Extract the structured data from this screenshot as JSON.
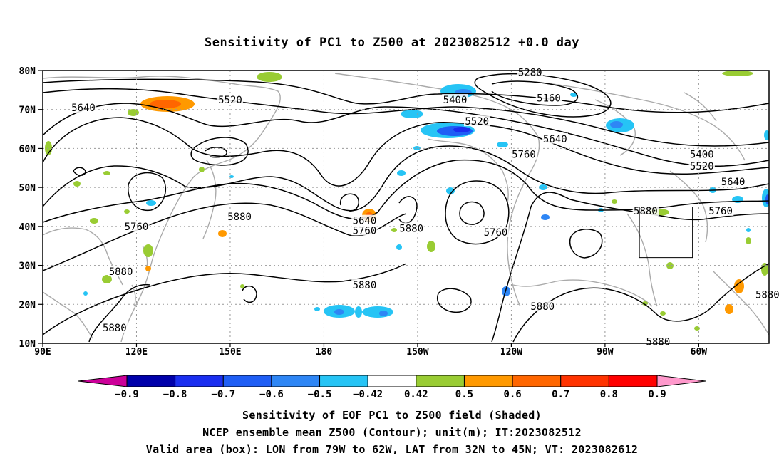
{
  "title": "Sensitivity of PC1 to Z500 at 2023082512 +0.0 day",
  "axes": {
    "lat_labels": [
      "80N",
      "70N",
      "60N",
      "50N",
      "40N",
      "30N",
      "20N",
      "10N"
    ],
    "lon_labels": [
      "90E",
      "120E",
      "150E",
      "180",
      "150W",
      "120W",
      "90W",
      "60W"
    ],
    "lat_values": [
      80,
      70,
      60,
      50,
      40,
      30,
      20,
      10
    ],
    "lon_values": [
      90,
      120,
      150,
      180,
      210,
      240,
      270,
      300
    ]
  },
  "contour_labels": [
    {
      "text": "5640",
      "lon": 103,
      "lat": 70.5
    },
    {
      "text": "5520",
      "lon": 150,
      "lat": 72.5
    },
    {
      "text": "5280",
      "lon": 246,
      "lat": 79.5
    },
    {
      "text": "5400",
      "lon": 222,
      "lat": 72.5
    },
    {
      "text": "5160",
      "lon": 252,
      "lat": 73
    },
    {
      "text": "5520",
      "lon": 229,
      "lat": 67
    },
    {
      "text": "5640",
      "lon": 254,
      "lat": 62.5
    },
    {
      "text": "5760",
      "lon": 244,
      "lat": 58.5
    },
    {
      "text": "5400",
      "lon": 301,
      "lat": 58.5
    },
    {
      "text": "5520",
      "lon": 301,
      "lat": 55.5
    },
    {
      "text": "5640",
      "lon": 311,
      "lat": 51.5
    },
    {
      "text": "5880",
      "lon": 153,
      "lat": 42.5
    },
    {
      "text": "5760",
      "lon": 120,
      "lat": 40
    },
    {
      "text": "5640",
      "lon": 193,
      "lat": 41.5
    },
    {
      "text": "5760",
      "lon": 193,
      "lat": 39
    },
    {
      "text": "5880",
      "lon": 208,
      "lat": 39.5
    },
    {
      "text": "5760",
      "lon": 235,
      "lat": 38.5
    },
    {
      "text": "5880",
      "lon": 283,
      "lat": 44
    },
    {
      "text": "5760",
      "lon": 307,
      "lat": 44
    },
    {
      "text": "5880",
      "lon": 115,
      "lat": 28.5
    },
    {
      "text": "5880",
      "lon": 193,
      "lat": 25
    },
    {
      "text": "5880",
      "lon": 250,
      "lat": 19.5
    },
    {
      "text": "5880",
      "lon": 322,
      "lat": 22.5
    },
    {
      "text": "5880",
      "lon": 113,
      "lat": 14
    },
    {
      "text": "5880",
      "lon": 287,
      "lat": 10.5
    }
  ],
  "valid_box": {
    "lon_west": -79,
    "lon_east": -62,
    "lat_south": 32,
    "lat_north": 45
  },
  "colorbar": {
    "labels": [
      "-0.9",
      "-0.8",
      "-0.7",
      "-0.6",
      "-0.5",
      "-0.42",
      "0.42",
      "0.5",
      "0.6",
      "0.7",
      "0.8",
      "0.9"
    ],
    "colors": [
      "#0000aa",
      "#1a2ef0",
      "#1f5ef5",
      "#2e86f5",
      "#26c4f5",
      "#ffffff",
      "#99cc33",
      "#ff9900",
      "#ff6600",
      "#ff3300",
      "#ff0000"
    ],
    "under_color": "#cc0099",
    "over_color": "#ff99cc"
  },
  "captions": [
    "Sensitivity of EOF PC1 to Z500 field (Shaded)",
    "NCEP ensemble mean Z500 (Contour); unit(m); IT:2023082512",
    "Valid area (box): LON from 79W to 62W, LAT from 32N to 45N; VT: 2023082612"
  ]
}
